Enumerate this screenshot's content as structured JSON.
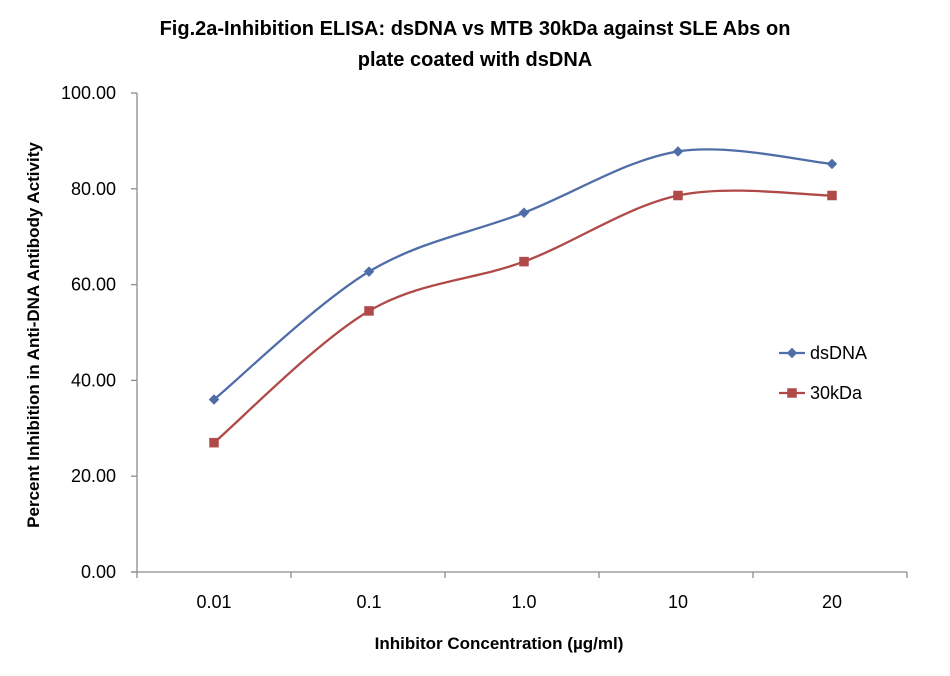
{
  "chart_data": {
    "type": "line",
    "title_line1": "Fig.2a-Inhibition ELISA: dsDNA vs MTB 30kDa against SLE Abs on",
    "title_line2": "plate coated with dsDNA",
    "xlabel": "Inhibitor Concentration (µg/ml)",
    "ylabel": "Percent Inhibition in Anti-DNA Antibody Activity",
    "categories": [
      "0.01",
      "0.1",
      "1.0",
      "10",
      "20"
    ],
    "yticks": [
      "0.00",
      "20.00",
      "40.00",
      "60.00",
      "80.00",
      "100.00"
    ],
    "ylim": [
      0,
      100
    ],
    "grid": false,
    "legend_position": "right",
    "series": [
      {
        "name": "dsDNA",
        "color": "#4f6ea8",
        "marker": "diamond",
        "values": [
          36.0,
          62.7,
          75.0,
          87.8,
          85.2
        ]
      },
      {
        "name": "30kDa",
        "color": "#b04a48",
        "marker": "square",
        "values": [
          27.0,
          54.5,
          64.8,
          78.6,
          78.6
        ]
      }
    ]
  }
}
